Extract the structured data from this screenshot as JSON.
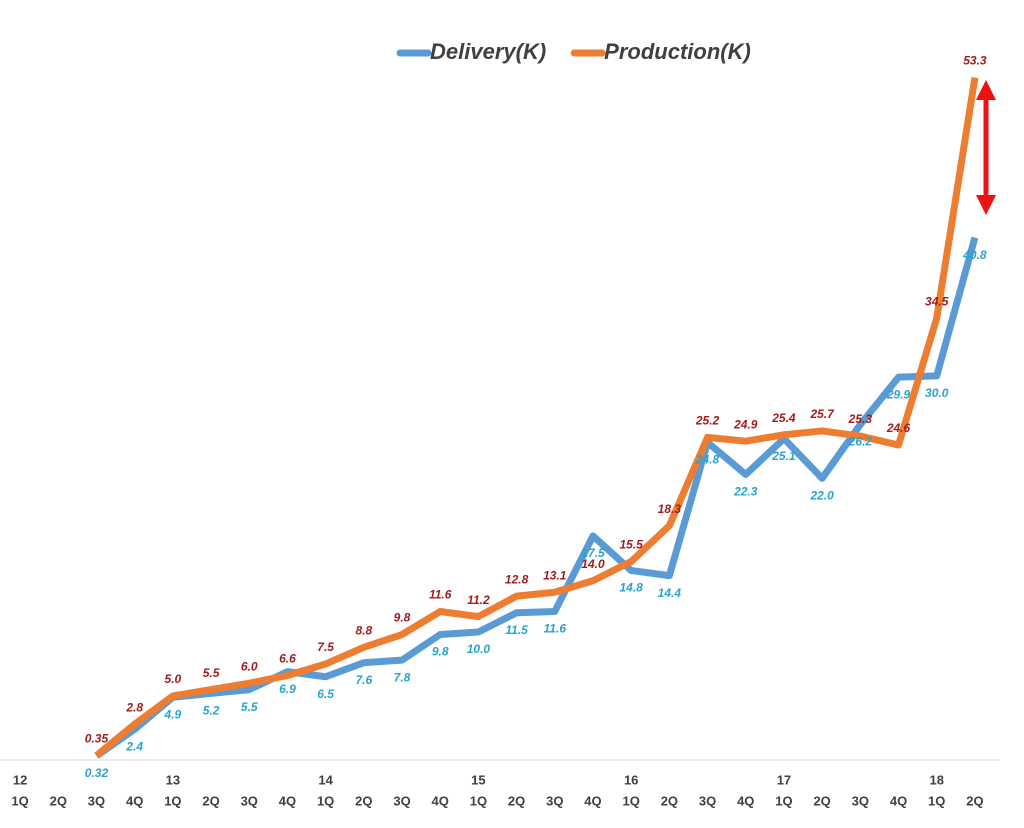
{
  "chart_data": {
    "type": "line",
    "categories": [
      "1Q",
      "2Q",
      "3Q",
      "4Q",
      "1Q",
      "2Q",
      "3Q",
      "4Q",
      "1Q",
      "2Q",
      "3Q",
      "4Q",
      "1Q",
      "2Q",
      "3Q",
      "4Q",
      "1Q",
      "2Q",
      "3Q",
      "4Q",
      "1Q",
      "2Q",
      "3Q",
      "4Q",
      "1Q",
      "2Q"
    ],
    "year_labels": [
      "12",
      null,
      null,
      null,
      "13",
      null,
      null,
      null,
      "14",
      null,
      null,
      null,
      "15",
      null,
      null,
      null,
      "16",
      null,
      null,
      null,
      "17",
      null,
      null,
      null,
      "18",
      null
    ],
    "series": [
      {
        "name": "Delivery(K)",
        "color": "#5b9bd5",
        "label_color": "#2aa3cc",
        "values": [
          null,
          null,
          0.32,
          2.4,
          4.9,
          5.2,
          5.5,
          6.9,
          6.5,
          7.6,
          7.8,
          9.8,
          10.0,
          11.5,
          11.6,
          17.5,
          14.8,
          14.4,
          24.8,
          22.3,
          25.1,
          22.0,
          26.2,
          29.9,
          30.0,
          40.8
        ],
        "value_labels": [
          null,
          null,
          "0.32",
          "2.4",
          "4.9",
          "5.2",
          "5.5",
          "6.9",
          "6.5",
          "7.6",
          "7.8",
          "9.8",
          "10.0",
          "11.5",
          "11.6",
          "17.5",
          "14.8",
          "14.4",
          "24.8",
          "22.3",
          "25.1",
          "22.0",
          "26.2",
          "29.9",
          "30.0",
          "40.8"
        ]
      },
      {
        "name": "Production(K)",
        "color": "#ed7d31",
        "label_color": "#a01c1c",
        "values": [
          null,
          null,
          0.35,
          2.8,
          5.0,
          5.5,
          6.0,
          6.6,
          7.5,
          8.8,
          9.8,
          11.6,
          11.2,
          12.8,
          13.1,
          14.0,
          15.5,
          18.3,
          25.2,
          24.9,
          25.4,
          25.7,
          25.3,
          24.6,
          34.5,
          53.3
        ],
        "value_labels": [
          null,
          null,
          "0.35",
          "2.8",
          "5.0",
          "5.5",
          "6.0",
          "6.6",
          "7.5",
          "8.8",
          "9.8",
          "11.6",
          "11.2",
          "12.8",
          "13.1",
          "14.0",
          "15.5",
          "18.3",
          "25.2",
          "24.9",
          "25.4",
          "25.7",
          "25.3",
          "24.6",
          "34.5",
          "53.3"
        ]
      }
    ],
    "ylim": [
      0,
      56
    ],
    "legend": "top"
  }
}
